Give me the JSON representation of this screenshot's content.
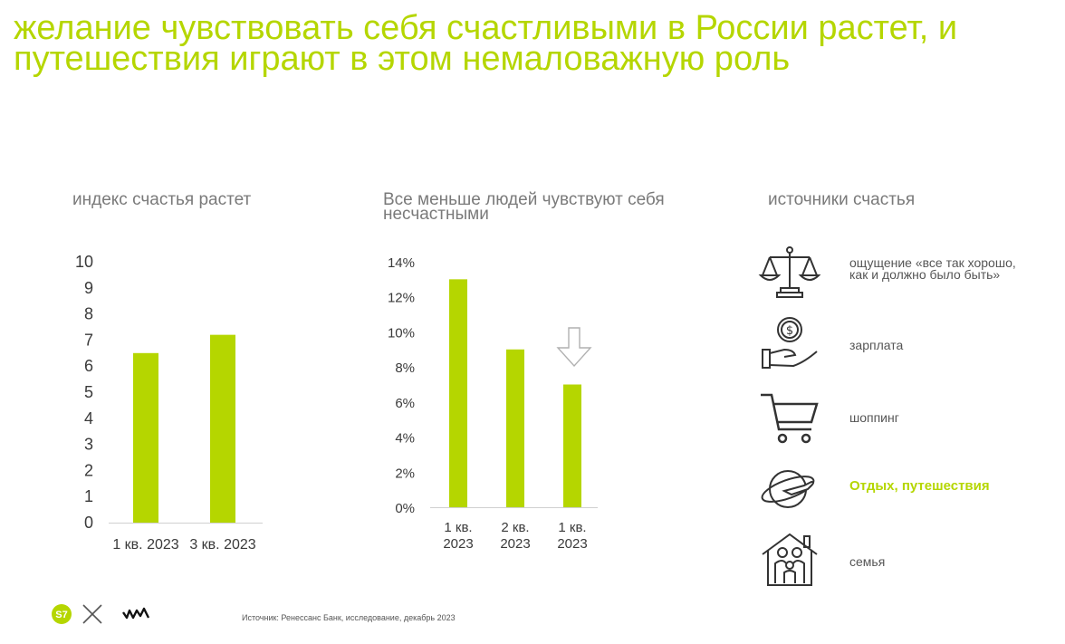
{
  "title": "желание чувствовать себя счастливыми в России растет, и путешествия играют в этом немаловажную роль",
  "colors": {
    "accent": "#b5d600",
    "text": "#3a3a3a",
    "muted": "#7a7a7a"
  },
  "chart_data": [
    {
      "type": "bar",
      "title": "индекс счастья растет",
      "categories": [
        "1 кв. 2023",
        "3 кв. 2023"
      ],
      "values": [
        6.5,
        7.2
      ],
      "ylim": [
        0,
        10
      ],
      "yticks": [
        "0",
        "1",
        "2",
        "3",
        "4",
        "5",
        "6",
        "7",
        "8",
        "9",
        "10"
      ],
      "grid": false,
      "color": "#b5d600"
    },
    {
      "type": "bar",
      "title": "Все меньше людей чувствуют себя несчастными",
      "categories": [
        [
          "1 кв.",
          "2023"
        ],
        [
          "2 кв.",
          "2023"
        ],
        [
          "1 кв.",
          "2023"
        ]
      ],
      "values": [
        13,
        9,
        7
      ],
      "ylim": [
        0,
        14
      ],
      "yticks": [
        "0%",
        "2%",
        "4%",
        "6%",
        "8%",
        "10%",
        "12%",
        "14%"
      ],
      "grid": false,
      "color": "#b5d600",
      "annotation": "down-arrow-icon"
    }
  ],
  "sources": {
    "heading": "источники счастья",
    "items": [
      {
        "icon": "scales-icon",
        "label_lines": [
          "ощущение «все так хорошо,",
          "как и должно было быть»"
        ],
        "highlight": false
      },
      {
        "icon": "money-hand-icon",
        "label_lines": [
          "зарплата"
        ],
        "highlight": false
      },
      {
        "icon": "shopping-cart-icon",
        "label_lines": [
          "шоппинг"
        ],
        "highlight": false
      },
      {
        "icon": "globe-plane-icon",
        "label_lines": [
          "Отдых, путешествия"
        ],
        "highlight": true
      },
      {
        "icon": "family-house-icon",
        "label_lines": [
          "семья"
        ],
        "highlight": false
      }
    ]
  },
  "footer": {
    "source": "Источник: Ренессанс Банк, исследование, декабрь 2023",
    "logos": [
      "s7-logo-icon",
      "times-icon",
      "partner-logo-icon"
    ]
  }
}
